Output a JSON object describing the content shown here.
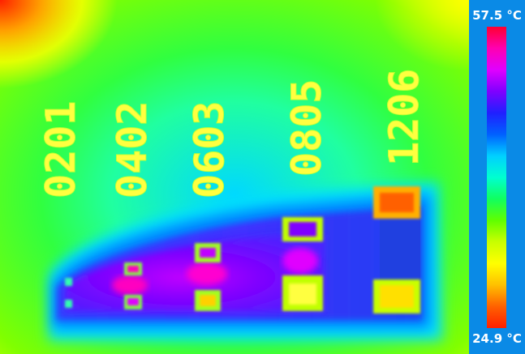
{
  "scale": {
    "max_label": "57.5 °C",
    "min_label": "24.9 °C",
    "colors_top_to_bottom": [
      "#ff0030",
      "#ff00b0",
      "#e000ff",
      "#8000ff",
      "#2020ff",
      "#0060ff",
      "#00d0ff",
      "#00ffd0",
      "#10ff60",
      "#60ff00",
      "#c8ff00",
      "#ffff00",
      "#ffc000",
      "#ff6000",
      "#ff2000"
    ]
  },
  "components": [
    {
      "code": "0201"
    },
    {
      "code": "0402"
    },
    {
      "code": "0603"
    },
    {
      "code": "0805"
    },
    {
      "code": "1206"
    }
  ]
}
